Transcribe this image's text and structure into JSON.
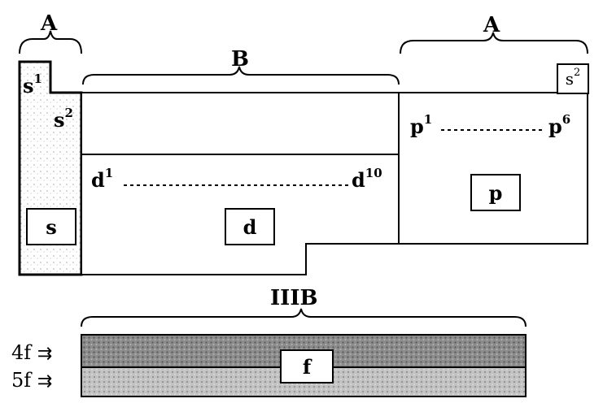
{
  "brackets": {
    "left_group": "A",
    "middle_group": "B",
    "right_group": "A",
    "f_group": "IIIB"
  },
  "s_block": {
    "top_config": "s",
    "top_config_sup": "1",
    "second_config": "s",
    "second_config_sup": "2",
    "label": "s"
  },
  "d_block": {
    "start": "d",
    "start_sup": "1",
    "end": "d",
    "end_sup": "10",
    "label": "d"
  },
  "p_block": {
    "corner": "s",
    "corner_sup": "2",
    "start": "p",
    "start_sup": "1",
    "end": "p",
    "end_sup": "6",
    "label": "p"
  },
  "f_block": {
    "row1": "4f",
    "row2": "5f",
    "arrow": "⇉",
    "label": "f"
  }
}
